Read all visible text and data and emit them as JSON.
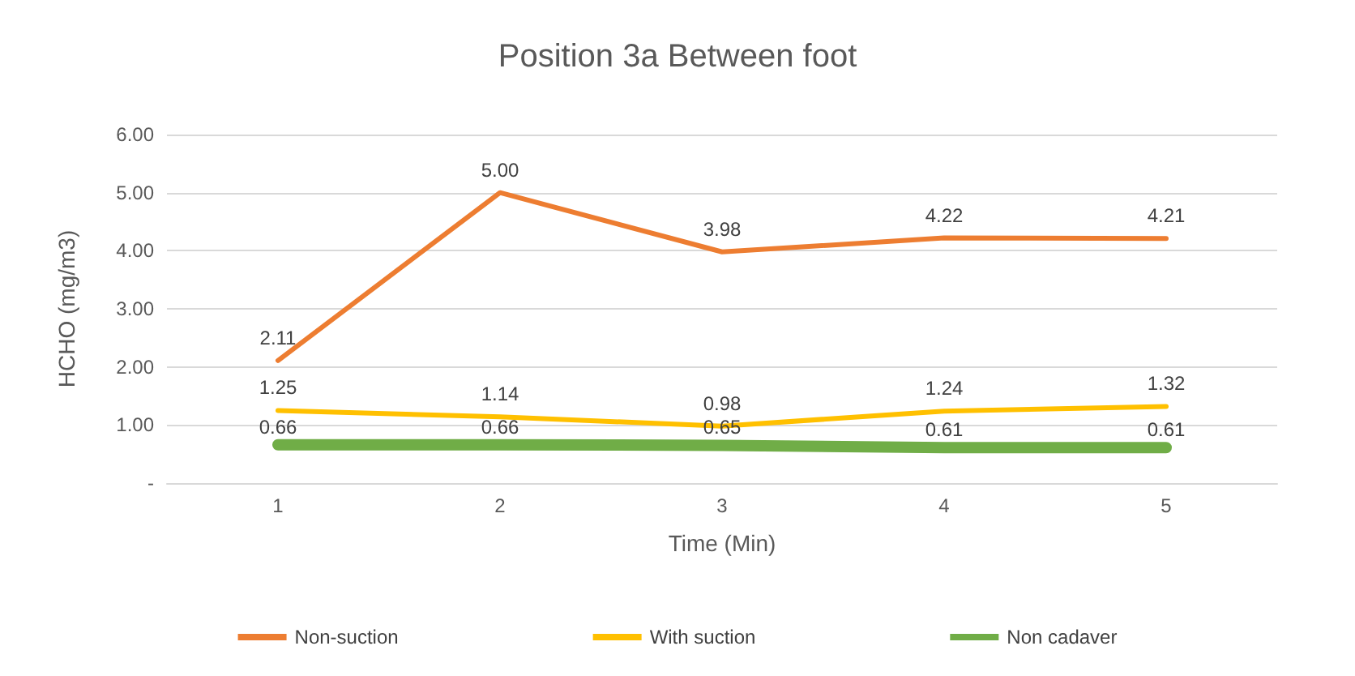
{
  "chart_data": {
    "type": "line",
    "title": "Position 3a Between foot",
    "xlabel": "Time (Min)",
    "ylabel": "HCHO (mg/m3)",
    "categories": [
      "1",
      "2",
      "3",
      "4",
      "5"
    ],
    "series": [
      {
        "name": "Non-suction",
        "color": "#ed7d31",
        "values": [
          2.11,
          5.0,
          3.98,
          4.22,
          4.21
        ],
        "value_labels": [
          "2.11",
          "5.00",
          "3.98",
          "4.22",
          "4.21"
        ]
      },
      {
        "name": "With suction",
        "color": "#ffc000",
        "values": [
          1.25,
          1.14,
          0.98,
          1.24,
          1.32
        ],
        "value_labels": [
          "1.25",
          "1.14",
          "0.98",
          "1.24",
          "1.32"
        ]
      },
      {
        "name": "Non cadaver",
        "color": "#70ad47",
        "values": [
          0.66,
          0.66,
          0.65,
          0.61,
          0.61
        ],
        "value_labels": [
          "0.66",
          "0.66",
          "0.65",
          "0.61",
          "0.61"
        ]
      }
    ],
    "ylim": [
      0,
      6
    ],
    "yticks": [
      {
        "value": 0,
        "label": "-"
      },
      {
        "value": 1,
        "label": "1.00"
      },
      {
        "value": 2,
        "label": "2.00"
      },
      {
        "value": 3,
        "label": "3.00"
      },
      {
        "value": 4,
        "label": "4.00"
      },
      {
        "value": 5,
        "label": "5.00"
      },
      {
        "value": 6,
        "label": "6.00"
      }
    ],
    "grid": "y",
    "legend": "bottom",
    "marker": "none",
    "line_style": "solid"
  }
}
